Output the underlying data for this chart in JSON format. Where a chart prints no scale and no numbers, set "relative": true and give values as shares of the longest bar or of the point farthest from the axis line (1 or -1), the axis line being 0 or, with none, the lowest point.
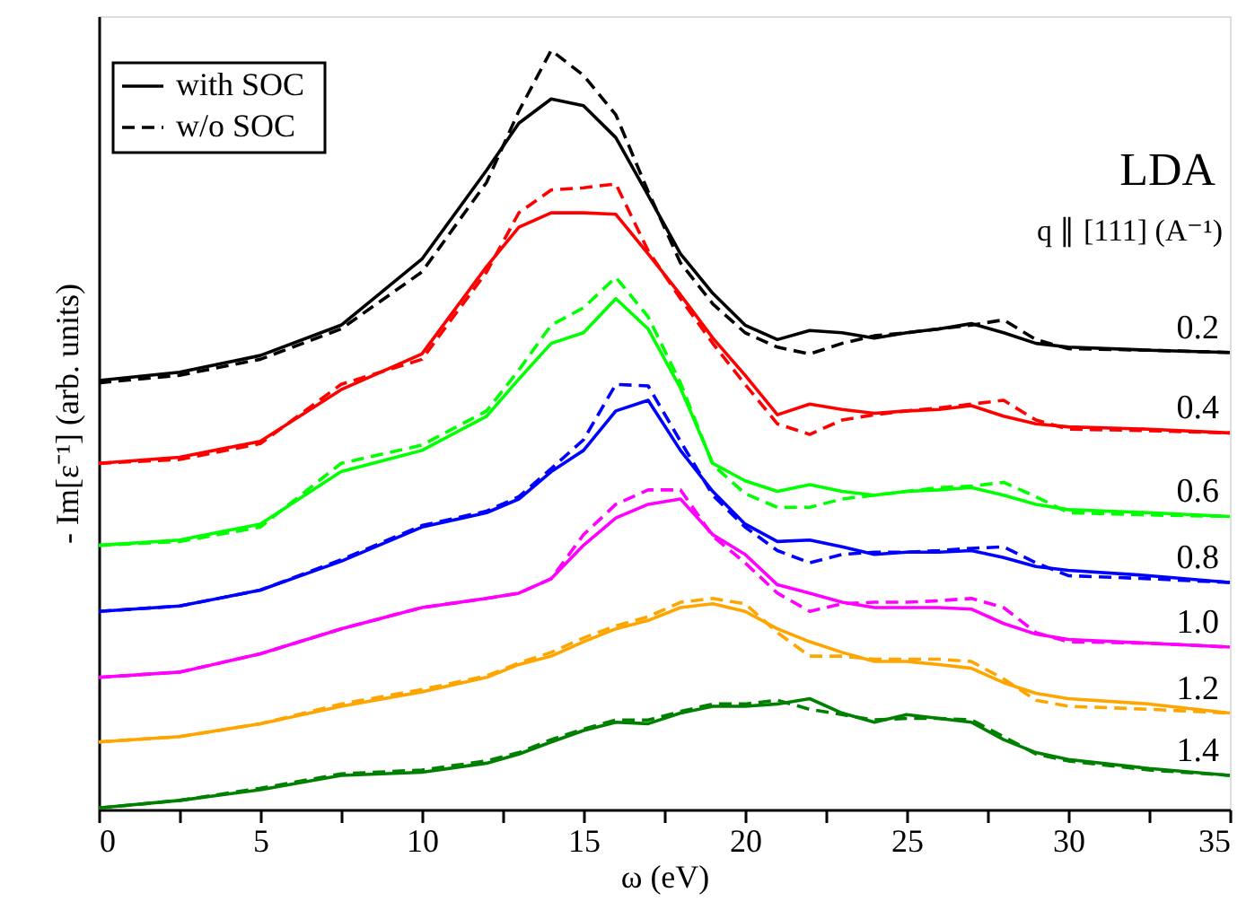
{
  "chart_data": {
    "type": "line",
    "relative": true,
    "xlabel": "ω (eV)",
    "ylabel": "- Im[ε⁻¹]  (arb. units)",
    "annotations": [
      "LDA",
      "q ∥ [111] (A⁻¹)",
      "with SOC",
      "w/o SOC"
    ],
    "xlim": [
      0,
      35
    ],
    "xticks": [
      0,
      {
        "value": 2.5,
        "label": null
      },
      5,
      {
        "value": 7.5,
        "label": null
      },
      10,
      {
        "value": 12.5,
        "label": null
      },
      15,
      {
        "value": 17.5,
        "label": null
      },
      20,
      {
        "value": 22.5,
        "label": null
      },
      25,
      {
        "value": 27.5,
        "label": null
      },
      30,
      {
        "value": 32.5,
        "label": null
      },
      35
    ],
    "grid": false,
    "x": [
      0,
      2.5,
      5,
      7.5,
      10,
      12,
      13,
      14,
      15,
      16,
      17,
      18,
      19,
      20,
      21,
      22,
      23,
      24,
      25,
      26,
      27,
      28,
      29,
      30,
      32.5,
      35
    ],
    "series": [
      {
        "name": "0.2",
        "color": "#000000",
        "line_style": "solid",
        "values": [
          0.565,
          0.576,
          0.598,
          0.638,
          0.725,
          0.842,
          0.904,
          0.936,
          0.927,
          0.885,
          0.809,
          0.732,
          0.68,
          0.638,
          0.619,
          0.631,
          0.628,
          0.621,
          0.628,
          0.633,
          0.64,
          0.628,
          0.614,
          0.609,
          0.605,
          0.602
        ]
      },
      {
        "color": "#000000",
        "line_style": "dashed",
        "values": [
          0.562,
          0.572,
          0.593,
          0.633,
          0.708,
          0.826,
          0.92,
          1,
          0.967,
          0.915,
          0.814,
          0.72,
          0.666,
          0.628,
          0.609,
          0.6,
          0.614,
          0.624,
          0.628,
          0.633,
          0.638,
          0.645,
          0.619,
          0.607,
          0.605,
          0.602
        ]
      },
      {
        "name": "0.4",
        "color": "#ff0000",
        "line_style": "solid",
        "values": [
          0.456,
          0.464,
          0.485,
          0.553,
          0.6,
          0.715,
          0.767,
          0.786,
          0.786,
          0.784,
          0.732,
          0.678,
          0.621,
          0.572,
          0.52,
          0.534,
          0.527,
          0.522,
          0.525,
          0.527,
          0.532,
          0.518,
          0.508,
          0.504,
          0.501,
          0.496
        ]
      },
      {
        "color": "#ff0000",
        "line_style": "dashed",
        "values": [
          0.456,
          0.461,
          0.482,
          0.56,
          0.593,
          0.708,
          0.786,
          0.816,
          0.819,
          0.824,
          0.736,
          0.673,
          0.614,
          0.56,
          0.508,
          0.494,
          0.513,
          0.52,
          0.525,
          0.529,
          0.534,
          0.539,
          0.513,
          0.501,
          0.499,
          0.496
        ]
      },
      {
        "name": "0.6",
        "color": "#00ff00",
        "line_style": "solid",
        "values": [
          0.348,
          0.355,
          0.376,
          0.445,
          0.473,
          0.518,
          0.567,
          0.614,
          0.628,
          0.673,
          0.633,
          0.555,
          0.456,
          0.433,
          0.419,
          0.428,
          0.419,
          0.414,
          0.419,
          0.421,
          0.424,
          0.414,
          0.402,
          0.395,
          0.391,
          0.386
        ]
      },
      {
        "color": "#00ff00",
        "line_style": "dashed",
        "values": [
          0.348,
          0.353,
          0.372,
          0.456,
          0.48,
          0.525,
          0.579,
          0.638,
          0.661,
          0.701,
          0.649,
          0.562,
          0.454,
          0.416,
          0.398,
          0.398,
          0.409,
          0.414,
          0.419,
          0.424,
          0.426,
          0.431,
          0.412,
          0.391,
          0.388,
          0.386
        ]
      },
      {
        "name": "0.8",
        "color": "#0000ff",
        "line_style": "solid",
        "values": [
          0.261,
          0.268,
          0.289,
          0.327,
          0.372,
          0.391,
          0.409,
          0.445,
          0.473,
          0.525,
          0.539,
          0.473,
          0.419,
          0.376,
          0.353,
          0.355,
          0.346,
          0.336,
          0.339,
          0.339,
          0.341,
          0.332,
          0.32,
          0.315,
          0.308,
          0.299
        ]
      },
      {
        "color": "#0000ff",
        "line_style": "dashed",
        "values": [
          0.261,
          0.268,
          0.289,
          0.329,
          0.374,
          0.393,
          0.412,
          0.449,
          0.487,
          0.56,
          0.558,
          0.485,
          0.414,
          0.372,
          0.341,
          0.325,
          0.336,
          0.339,
          0.339,
          0.341,
          0.344,
          0.346,
          0.325,
          0.308,
          0.304,
          0.299
        ]
      },
      {
        "name": "1.0",
        "color": "#ff00ff",
        "line_style": "solid",
        "values": [
          0.174,
          0.181,
          0.205,
          0.238,
          0.266,
          0.278,
          0.285,
          0.304,
          0.348,
          0.384,
          0.402,
          0.409,
          0.362,
          0.336,
          0.296,
          0.285,
          0.273,
          0.266,
          0.266,
          0.266,
          0.264,
          0.245,
          0.231,
          0.224,
          0.219,
          0.214
        ]
      },
      {
        "color": "#ff00ff",
        "line_style": "dashed",
        "values": [
          0.174,
          0.181,
          0.205,
          0.238,
          0.266,
          0.278,
          0.285,
          0.304,
          0.362,
          0.402,
          0.421,
          0.421,
          0.36,
          0.325,
          0.285,
          0.261,
          0.271,
          0.273,
          0.273,
          0.275,
          0.278,
          0.266,
          0.233,
          0.221,
          0.219,
          0.214
        ]
      },
      {
        "name": "1.2",
        "color": "#ffa500",
        "line_style": "solid",
        "values": [
          0.089,
          0.096,
          0.113,
          0.136,
          0.155,
          0.174,
          0.191,
          0.202,
          0.221,
          0.238,
          0.249,
          0.266,
          0.271,
          0.261,
          0.238,
          0.221,
          0.207,
          0.195,
          0.195,
          0.191,
          0.186,
          0.167,
          0.153,
          0.146,
          0.139,
          0.127
        ]
      },
      {
        "color": "#ffa500",
        "line_style": "dashed",
        "values": [
          0.089,
          0.096,
          0.113,
          0.139,
          0.158,
          0.176,
          0.193,
          0.207,
          0.226,
          0.242,
          0.254,
          0.273,
          0.278,
          0.271,
          0.233,
          0.202,
          0.202,
          0.198,
          0.198,
          0.198,
          0.195,
          0.172,
          0.144,
          0.136,
          0.132,
          0.127
        ]
      },
      {
        "name": "1.4",
        "color": "#008000",
        "line_style": "solid",
        "values": [
          0.002,
          0.012,
          0.026,
          0.045,
          0.049,
          0.061,
          0.073,
          0.089,
          0.104,
          0.115,
          0.113,
          0.127,
          0.136,
          0.136,
          0.139,
          0.146,
          0.127,
          0.115,
          0.125,
          0.12,
          0.115,
          0.092,
          0.075,
          0.066,
          0.054,
          0.045
        ]
      },
      {
        "color": "#008000",
        "line_style": "dashed",
        "values": [
          0.002,
          0.012,
          0.028,
          0.047,
          0.052,
          0.064,
          0.075,
          0.092,
          0.106,
          0.118,
          0.118,
          0.129,
          0.139,
          0.139,
          0.144,
          0.132,
          0.125,
          0.118,
          0.12,
          0.12,
          0.118,
          0.096,
          0.073,
          0.064,
          0.052,
          0.045
        ]
      }
    ]
  }
}
